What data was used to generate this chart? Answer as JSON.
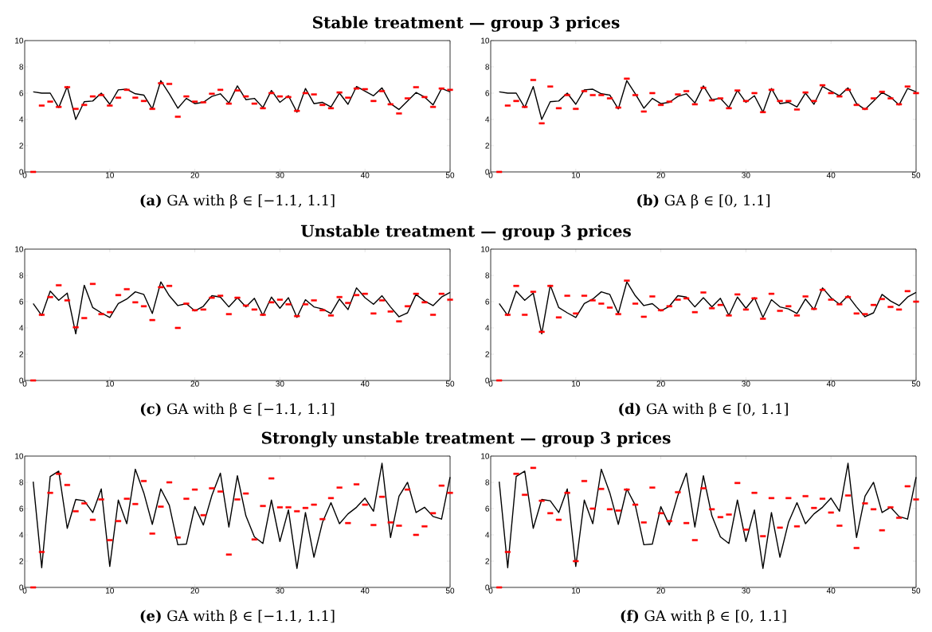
{
  "chart_data": [
    {
      "type": "line",
      "title": "Stable treatment — group 3 prices",
      "annotations": [
        "**(a)** GA with β ∈ [−1.1, 1.1]"
      ],
      "x": [
        1,
        2,
        3,
        4,
        5,
        6,
        7,
        8,
        9,
        10,
        11,
        12,
        13,
        14,
        15,
        16,
        17,
        18,
        19,
        20,
        21,
        22,
        23,
        24,
        25,
        26,
        27,
        28,
        29,
        30,
        31,
        32,
        33,
        34,
        35,
        36,
        37,
        38,
        39,
        40,
        41,
        42,
        43,
        44,
        45,
        46,
        47,
        48,
        49,
        50
      ],
      "xlim": [
        0,
        50
      ],
      "xticks": [
        0,
        10,
        20,
        30,
        40,
        50
      ],
      "ylim": [
        0,
        10
      ],
      "yticks": [
        0,
        2,
        4,
        6,
        8,
        10
      ],
      "series": [
        {
          "marker": "none",
          "color": "#000000",
          "values": [
            6.1,
            6.0,
            6.0,
            4.9,
            6.5,
            4.0,
            5.35,
            5.4,
            6.0,
            5.15,
            6.25,
            6.3,
            5.95,
            5.85,
            4.8,
            6.95,
            5.95,
            4.85,
            5.6,
            5.2,
            5.3,
            5.75,
            5.95,
            5.25,
            6.55,
            5.5,
            5.6,
            4.9,
            6.2,
            5.3,
            5.8,
            4.55,
            6.35,
            5.2,
            5.3,
            4.95,
            6.0,
            5.15,
            6.5,
            6.15,
            5.8,
            6.4,
            5.2,
            4.75,
            5.4,
            6.05,
            5.7,
            5.1,
            6.35,
            6.1
          ]
        },
        {
          "type": "scatter",
          "marker": "square",
          "color": "#ff0000",
          "values": [
            0,
            5.05,
            5.35,
            4.95,
            6.45,
            4.8,
            5.1,
            5.75,
            5.85,
            5.05,
            5.65,
            6.25,
            5.65,
            5.4,
            4.8,
            6.75,
            6.7,
            4.2,
            5.75,
            5.35,
            5.3,
            5.95,
            6.25,
            5.2,
            6.2,
            5.75,
            5.2,
            4.85,
            6.0,
            5.75,
            5.7,
            4.65,
            6.0,
            5.9,
            5.1,
            4.85,
            6.05,
            5.65,
            6.35,
            6.3,
            5.4,
            6.15,
            5.15,
            4.45,
            5.6,
            6.45,
            5.7,
            4.95,
            6.35,
            6.25
          ]
        }
      ]
    },
    {
      "type": "line",
      "annotations": [
        "**(b)** GA β ∈ [0, 1.1]"
      ],
      "x": [
        1,
        2,
        3,
        4,
        5,
        6,
        7,
        8,
        9,
        10,
        11,
        12,
        13,
        14,
        15,
        16,
        17,
        18,
        19,
        20,
        21,
        22,
        23,
        24,
        25,
        26,
        27,
        28,
        29,
        30,
        31,
        32,
        33,
        34,
        35,
        36,
        37,
        38,
        39,
        40,
        41,
        42,
        43,
        44,
        45,
        46,
        47,
        48,
        49,
        50
      ],
      "xlim": [
        0,
        50
      ],
      "xticks": [
        0,
        10,
        20,
        30,
        40,
        50
      ],
      "ylim": [
        0,
        10
      ],
      "yticks": [
        0,
        2,
        4,
        6,
        8,
        10
      ],
      "series": [
        {
          "marker": "none",
          "color": "#000000",
          "values": [
            6.1,
            6.0,
            6.0,
            4.9,
            6.5,
            4.0,
            5.35,
            5.4,
            6.0,
            5.15,
            6.25,
            6.3,
            5.95,
            5.85,
            4.8,
            6.95,
            5.95,
            4.85,
            5.6,
            5.2,
            5.3,
            5.75,
            5.95,
            5.25,
            6.55,
            5.5,
            5.6,
            4.9,
            6.2,
            5.3,
            5.8,
            4.55,
            6.35,
            5.2,
            5.3,
            4.95,
            6.0,
            5.15,
            6.5,
            6.15,
            5.8,
            6.4,
            5.2,
            4.75,
            5.4,
            6.05,
            5.7,
            5.1,
            6.35,
            6.1
          ]
        },
        {
          "type": "scatter",
          "marker": "square",
          "color": "#ff0000",
          "values": [
            0,
            5.05,
            5.4,
            4.95,
            7.0,
            3.7,
            6.5,
            4.85,
            5.85,
            4.8,
            6.15,
            5.85,
            5.85,
            5.6,
            4.9,
            7.1,
            5.85,
            4.6,
            6.0,
            5.1,
            5.35,
            5.9,
            6.15,
            5.15,
            6.4,
            5.45,
            5.6,
            4.85,
            6.2,
            5.4,
            6.0,
            4.55,
            6.25,
            5.4,
            5.4,
            4.75,
            6.05,
            5.4,
            6.6,
            6.0,
            5.75,
            6.25,
            5.1,
            4.8,
            5.6,
            6.1,
            5.6,
            5.15,
            6.5,
            6.0
          ]
        }
      ]
    },
    {
      "type": "line",
      "title": "Unstable treatment — group 3 prices",
      "annotations": [
        "**(c)** GA with β ∈ [−1.1, 1.1]"
      ],
      "x": [
        1,
        2,
        3,
        4,
        5,
        6,
        7,
        8,
        9,
        10,
        11,
        12,
        13,
        14,
        15,
        16,
        17,
        18,
        19,
        20,
        21,
        22,
        23,
        24,
        25,
        26,
        27,
        28,
        29,
        30,
        31,
        32,
        33,
        34,
        35,
        36,
        37,
        38,
        39,
        40,
        41,
        42,
        43,
        44,
        45,
        46,
        47,
        48,
        49,
        50
      ],
      "xlim": [
        0,
        50
      ],
      "xticks": [
        0,
        10,
        20,
        30,
        40,
        50
      ],
      "ylim": [
        0,
        10
      ],
      "yticks": [
        0,
        2,
        4,
        6,
        8,
        10
      ],
      "series": [
        {
          "marker": "none",
          "color": "#000000",
          "values": [
            5.85,
            4.95,
            6.8,
            6.1,
            6.65,
            3.55,
            7.25,
            5.55,
            5.15,
            4.8,
            5.85,
            6.2,
            6.75,
            6.55,
            5.1,
            7.5,
            6.45,
            5.7,
            5.85,
            5.3,
            5.65,
            6.45,
            6.35,
            5.6,
            6.3,
            5.6,
            6.25,
            4.95,
            6.35,
            5.5,
            6.3,
            4.8,
            6.15,
            5.6,
            5.45,
            5.1,
            6.2,
            5.4,
            7.05,
            6.3,
            5.8,
            6.45,
            5.6,
            4.85,
            5.15,
            6.55,
            6.05,
            5.7,
            6.35,
            6.7
          ]
        },
        {
          "type": "scatter",
          "marker": "square",
          "color": "#ff0000",
          "values": [
            0,
            5.0,
            6.35,
            7.25,
            6.1,
            4.05,
            4.75,
            7.35,
            5.05,
            5.2,
            6.5,
            6.95,
            5.95,
            5.65,
            4.6,
            7.1,
            7.2,
            4.0,
            5.85,
            5.35,
            5.4,
            6.3,
            6.45,
            5.05,
            6.3,
            5.7,
            5.4,
            5.0,
            5.95,
            6.15,
            5.8,
            4.9,
            5.8,
            6.1,
            5.35,
            4.95,
            6.35,
            5.9,
            6.5,
            6.6,
            5.1,
            6.1,
            5.25,
            4.5,
            5.65,
            6.6,
            5.95,
            5.0,
            6.6,
            6.15
          ]
        }
      ]
    },
    {
      "type": "line",
      "annotations": [
        "**(d)** GA with β ∈ [0, 1.1]"
      ],
      "x": [
        1,
        2,
        3,
        4,
        5,
        6,
        7,
        8,
        9,
        10,
        11,
        12,
        13,
        14,
        15,
        16,
        17,
        18,
        19,
        20,
        21,
        22,
        23,
        24,
        25,
        26,
        27,
        28,
        29,
        30,
        31,
        32,
        33,
        34,
        35,
        36,
        37,
        38,
        39,
        40,
        41,
        42,
        43,
        44,
        45,
        46,
        47,
        48,
        49,
        50
      ],
      "xlim": [
        0,
        50
      ],
      "xticks": [
        0,
        10,
        20,
        30,
        40,
        50
      ],
      "ylim": [
        0,
        10
      ],
      "yticks": [
        0,
        2,
        4,
        6,
        8,
        10
      ],
      "series": [
        {
          "marker": "none",
          "color": "#000000",
          "values": [
            5.85,
            4.95,
            6.8,
            6.1,
            6.65,
            3.55,
            7.25,
            5.55,
            5.15,
            4.8,
            5.85,
            6.2,
            6.75,
            6.55,
            5.1,
            7.5,
            6.45,
            5.7,
            5.85,
            5.3,
            5.65,
            6.45,
            6.35,
            5.6,
            6.3,
            5.6,
            6.25,
            4.95,
            6.35,
            5.5,
            6.3,
            4.8,
            6.15,
            5.6,
            5.45,
            5.1,
            6.2,
            5.4,
            7.05,
            6.3,
            5.8,
            6.45,
            5.6,
            4.85,
            5.15,
            6.55,
            6.05,
            5.7,
            6.35,
            6.7
          ]
        },
        {
          "type": "scatter",
          "marker": "square",
          "color": "#ff0000",
          "values": [
            0,
            5.0,
            7.2,
            5.0,
            6.75,
            3.7,
            7.2,
            4.8,
            6.45,
            5.1,
            6.45,
            6.1,
            5.85,
            5.55,
            5.05,
            7.6,
            5.85,
            4.85,
            6.4,
            5.35,
            5.65,
            6.15,
            6.25,
            5.2,
            6.7,
            5.5,
            5.75,
            4.95,
            6.55,
            5.4,
            6.25,
            4.7,
            6.6,
            5.3,
            5.65,
            4.95,
            6.4,
            5.45,
            6.9,
            6.15,
            5.8,
            6.35,
            5.1,
            5.05,
            5.75,
            6.2,
            5.6,
            5.4,
            6.8,
            6.0
          ]
        }
      ]
    },
    {
      "type": "line",
      "title": "Strongly unstable treatment — group 3 prices",
      "annotations": [
        "**(e)** GA with β ∈ [−1.1, 1.1]"
      ],
      "x": [
        1,
        2,
        3,
        4,
        5,
        6,
        7,
        8,
        9,
        10,
        11,
        12,
        13,
        14,
        15,
        16,
        17,
        18,
        19,
        20,
        21,
        22,
        23,
        24,
        25,
        26,
        27,
        28,
        29,
        30,
        31,
        32,
        33,
        34,
        35,
        36,
        37,
        38,
        39,
        40,
        41,
        42,
        43,
        44,
        45,
        46,
        47,
        48,
        49,
        50
      ],
      "xlim": [
        0,
        50
      ],
      "xticks": [
        0,
        10,
        20,
        30,
        40,
        50
      ],
      "ylim": [
        0,
        10
      ],
      "yticks": [
        0,
        2,
        4,
        6,
        8,
        10
      ],
      "series": [
        {
          "marker": "none",
          "color": "#000000",
          "values": [
            8.05,
            1.5,
            8.45,
            8.85,
            4.5,
            6.7,
            6.6,
            5.7,
            7.5,
            1.6,
            6.65,
            4.85,
            9.0,
            7.2,
            4.8,
            7.5,
            6.25,
            3.25,
            3.3,
            6.15,
            4.75,
            7.0,
            8.7,
            4.6,
            8.5,
            5.45,
            3.85,
            3.35,
            6.65,
            3.5,
            5.9,
            1.45,
            5.7,
            2.3,
            4.95,
            6.45,
            4.85,
            5.6,
            6.1,
            6.8,
            5.8,
            9.45,
            3.8,
            6.95,
            8.0,
            5.7,
            6.1,
            5.4,
            5.2,
            8.4
          ]
        },
        {
          "type": "scatter",
          "marker": "square",
          "color": "#ff0000",
          "values": [
            0,
            2.7,
            7.2,
            8.65,
            7.8,
            5.8,
            6.4,
            5.15,
            6.7,
            3.6,
            5.05,
            6.75,
            6.35,
            8.1,
            4.1,
            6.15,
            8.0,
            3.8,
            6.75,
            7.45,
            5.5,
            7.55,
            7.3,
            2.5,
            6.7,
            7.15,
            3.65,
            6.2,
            8.3,
            6.1,
            6.1,
            5.8,
            6.05,
            6.3,
            5.2,
            6.8,
            7.6,
            4.9,
            7.85,
            6.3,
            4.75,
            6.9,
            4.95,
            4.7,
            7.45,
            4.0,
            4.65,
            5.65,
            7.75,
            7.2
          ]
        }
      ]
    },
    {
      "type": "line",
      "annotations": [
        "**(f)** GA with β ∈ [0, 1.1]"
      ],
      "x": [
        1,
        2,
        3,
        4,
        5,
        6,
        7,
        8,
        9,
        10,
        11,
        12,
        13,
        14,
        15,
        16,
        17,
        18,
        19,
        20,
        21,
        22,
        23,
        24,
        25,
        26,
        27,
        28,
        29,
        30,
        31,
        32,
        33,
        34,
        35,
        36,
        37,
        38,
        39,
        40,
        41,
        42,
        43,
        44,
        45,
        46,
        47,
        48,
        49,
        50
      ],
      "xlim": [
        0,
        50
      ],
      "xticks": [
        0,
        10,
        20,
        30,
        40,
        50
      ],
      "ylim": [
        0,
        10
      ],
      "yticks": [
        0,
        2,
        4,
        6,
        8,
        10
      ],
      "series": [
        {
          "marker": "none",
          "color": "#000000",
          "values": [
            8.05,
            1.5,
            8.45,
            8.85,
            4.5,
            6.7,
            6.6,
            5.7,
            7.5,
            1.6,
            6.65,
            4.85,
            9.0,
            7.2,
            4.8,
            7.5,
            6.25,
            3.25,
            3.3,
            6.15,
            4.75,
            7.0,
            8.7,
            4.6,
            8.5,
            5.45,
            3.85,
            3.35,
            6.65,
            3.5,
            5.9,
            1.45,
            5.7,
            2.3,
            4.95,
            6.45,
            4.85,
            5.6,
            6.1,
            6.8,
            5.8,
            9.45,
            3.8,
            6.95,
            8.0,
            5.7,
            6.1,
            5.4,
            5.2,
            8.4
          ]
        },
        {
          "type": "scatter",
          "marker": "square",
          "color": "#ff0000",
          "values": [
            0,
            2.7,
            8.65,
            7.05,
            9.1,
            6.6,
            5.65,
            5.15,
            7.2,
            2.0,
            8.1,
            6.0,
            7.5,
            5.95,
            5.85,
            7.45,
            6.3,
            4.95,
            7.6,
            5.65,
            5.05,
            7.25,
            4.9,
            3.6,
            7.55,
            5.95,
            5.35,
            5.55,
            7.95,
            4.4,
            7.2,
            3.9,
            6.8,
            4.55,
            6.8,
            4.65,
            6.95,
            6.05,
            6.75,
            5.7,
            4.7,
            7.0,
            3.0,
            6.4,
            5.95,
            4.35,
            6.1,
            5.3,
            7.7,
            6.7
          ]
        }
      ]
    }
  ]
}
